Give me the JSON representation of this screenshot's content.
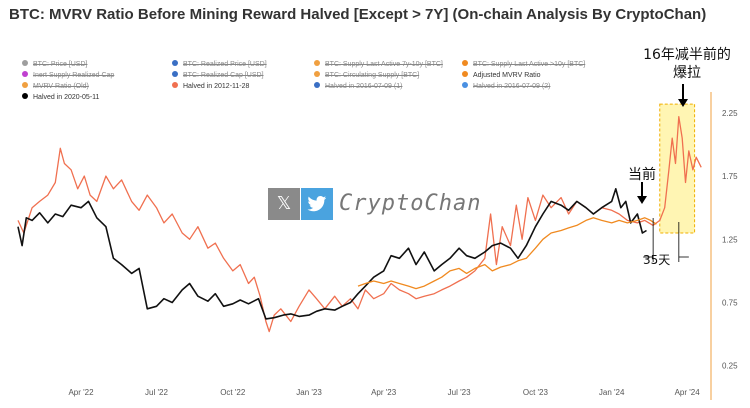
{
  "chart_data": {
    "type": "line",
    "title": "BTC: MVRV Ratio Before Mining Reward Halved [Except > 7Y] (On-chain Analysis By CryptoChan)",
    "xlabel": "",
    "ylabel": "",
    "x_tick_labels": [
      "Apr '22",
      "Jul '22",
      "Oct '22",
      "Jan '23",
      "Apr '23",
      "Jul '23",
      "Oct '23",
      "Jan '24",
      "Apr '24"
    ],
    "x_tick_dates": [
      "2022-04-01",
      "2022-07-01",
      "2022-10-01",
      "2023-01-01",
      "2023-04-01",
      "2023-07-01",
      "2023-10-01",
      "2024-01-01",
      "2024-04-01"
    ],
    "xlim": [
      "2022-01-15",
      "2024-05-01"
    ],
    "y_ticks": [
      0.25,
      0.75,
      1.25,
      1.75,
      2.25
    ],
    "y_tick_labels": [
      "0.25",
      "0.75",
      "1.25",
      "1.75",
      "2.25"
    ],
    "ylim": [
      0.2,
      2.4
    ],
    "y_axis_side": "right",
    "grid": false,
    "legend_position": "top-left",
    "legend": [
      {
        "label": "BTC: Price [USD]",
        "color": "#9e9e9e",
        "hidden": true
      },
      {
        "label": "BTC: Realized Price [USD]",
        "color": "#3a6fc4",
        "hidden": true
      },
      {
        "label": "BTC: Supply Last Active 7y-10y [BTC]",
        "color": "#f0a040",
        "hidden": true
      },
      {
        "label": "BTC: Supply Last Active >10y [BTC]",
        "color": "#f08a20",
        "hidden": true
      },
      {
        "label": "Inert Supply Realized Cap",
        "color": "#c040d0",
        "hidden": true
      },
      {
        "label": "BTC: Realized Cap [USD]",
        "color": "#3a6fc4",
        "hidden": true
      },
      {
        "label": "BTC: Circulating Supply [BTC]",
        "color": "#f0a040",
        "hidden": true
      },
      {
        "label": "Adjusted MVRV Ratio",
        "color": "#f08a20",
        "hidden": false
      },
      {
        "label": "MVRV Ratio (Old)",
        "color": "#f0a040",
        "hidden": true
      },
      {
        "label": "Halved in 2012-11-28",
        "color": "#f07050",
        "hidden": false
      },
      {
        "label": "Halved in 2016-07-09 (1)",
        "color": "#3a6fc4",
        "hidden": true
      },
      {
        "label": "Halved in 2016-07-09 (2)",
        "color": "#4a90e2",
        "hidden": true
      },
      {
        "label": "Halved in 2020-05-11",
        "color": "#000000",
        "hidden": false
      }
    ],
    "series": [
      {
        "name": "Halved in 2012-11-28",
        "color": "#f07050",
        "points": [
          [
            "2022-01-15",
            1.4
          ],
          [
            "2022-01-22",
            1.3
          ],
          [
            "2022-02-01",
            1.5
          ],
          [
            "2022-02-10",
            1.55
          ],
          [
            "2022-02-20",
            1.6
          ],
          [
            "2022-03-01",
            1.7
          ],
          [
            "2022-03-07",
            1.97
          ],
          [
            "2022-03-12",
            1.85
          ],
          [
            "2022-03-20",
            1.8
          ],
          [
            "2022-03-28",
            1.65
          ],
          [
            "2022-04-05",
            1.75
          ],
          [
            "2022-04-12",
            1.6
          ],
          [
            "2022-04-20",
            1.55
          ],
          [
            "2022-05-01",
            1.75
          ],
          [
            "2022-05-10",
            1.65
          ],
          [
            "2022-05-20",
            1.72
          ],
          [
            "2022-06-01",
            1.55
          ],
          [
            "2022-06-10",
            1.48
          ],
          [
            "2022-06-20",
            1.6
          ],
          [
            "2022-07-01",
            1.5
          ],
          [
            "2022-07-10",
            1.38
          ],
          [
            "2022-07-20",
            1.45
          ],
          [
            "2022-08-01",
            1.3
          ],
          [
            "2022-08-10",
            1.25
          ],
          [
            "2022-08-20",
            1.35
          ],
          [
            "2022-09-01",
            1.18
          ],
          [
            "2022-09-10",
            1.22
          ],
          [
            "2022-09-20",
            1.1
          ],
          [
            "2022-10-01",
            1.0
          ],
          [
            "2022-10-10",
            1.05
          ],
          [
            "2022-10-20",
            0.9
          ],
          [
            "2022-10-27",
            0.95
          ],
          [
            "2022-11-03",
            0.8
          ],
          [
            "2022-11-10",
            0.6
          ],
          [
            "2022-11-14",
            0.52
          ],
          [
            "2022-11-20",
            0.65
          ],
          [
            "2022-11-28",
            0.7
          ],
          [
            "2022-12-10",
            0.6
          ],
          [
            "2022-12-20",
            0.72
          ],
          [
            "2023-01-01",
            0.85
          ],
          [
            "2023-01-10",
            0.78
          ],
          [
            "2023-01-20",
            0.7
          ],
          [
            "2023-02-01",
            0.8
          ],
          [
            "2023-02-10",
            0.72
          ],
          [
            "2023-02-20",
            0.78
          ],
          [
            "2023-03-01",
            0.7
          ],
          [
            "2023-03-10",
            0.85
          ],
          [
            "2023-03-20",
            0.78
          ],
          [
            "2023-04-01",
            0.82
          ],
          [
            "2023-04-10",
            0.9
          ],
          [
            "2023-04-20",
            0.85
          ],
          [
            "2023-05-01",
            0.82
          ],
          [
            "2023-05-10",
            0.78
          ],
          [
            "2023-05-20",
            0.8
          ],
          [
            "2023-06-01",
            0.82
          ],
          [
            "2023-06-10",
            0.85
          ],
          [
            "2023-06-20",
            0.88
          ],
          [
            "2023-07-01",
            0.92
          ],
          [
            "2023-07-10",
            0.95
          ],
          [
            "2023-07-20",
            1.0
          ],
          [
            "2023-08-01",
            1.1
          ],
          [
            "2023-08-08",
            1.45
          ],
          [
            "2023-08-15",
            1.05
          ],
          [
            "2023-08-22",
            1.35
          ],
          [
            "2023-09-01",
            1.2
          ],
          [
            "2023-09-08",
            1.52
          ],
          [
            "2023-09-15",
            1.25
          ],
          [
            "2023-09-22",
            1.58
          ],
          [
            "2023-10-01",
            1.4
          ],
          [
            "2023-10-10",
            1.6
          ],
          [
            "2023-10-20",
            1.5
          ],
          [
            "2023-11-01",
            1.58
          ],
          [
            "2023-11-10",
            1.45
          ],
          [
            "2023-11-20",
            1.55
          ],
          [
            "2023-12-01",
            1.5
          ],
          [
            "2023-12-10",
            1.45
          ],
          [
            "2023-12-20",
            1.5
          ],
          [
            "2024-01-01",
            1.48
          ],
          [
            "2024-01-10",
            1.45
          ],
          [
            "2024-01-20",
            1.4
          ],
          [
            "2024-02-01",
            1.38
          ],
          [
            "2024-02-10",
            1.4
          ],
          [
            "2024-02-20",
            1.36
          ],
          [
            "2024-02-28",
            1.4
          ],
          [
            "2024-03-05",
            1.5
          ],
          [
            "2024-03-10",
            1.8
          ],
          [
            "2024-03-14",
            2.05
          ],
          [
            "2024-03-18",
            1.85
          ],
          [
            "2024-03-22",
            2.22
          ],
          [
            "2024-03-26",
            2.05
          ],
          [
            "2024-03-30",
            1.7
          ],
          [
            "2024-04-03",
            1.95
          ],
          [
            "2024-04-08",
            1.8
          ],
          [
            "2024-04-12",
            1.9
          ],
          [
            "2024-04-18",
            1.82
          ]
        ]
      },
      {
        "name": "Halved in 2020-05-11",
        "color": "#111111",
        "points": [
          [
            "2022-01-15",
            1.35
          ],
          [
            "2022-01-20",
            1.2
          ],
          [
            "2022-01-25",
            1.42
          ],
          [
            "2022-02-01",
            1.4
          ],
          [
            "2022-02-10",
            1.46
          ],
          [
            "2022-02-20",
            1.38
          ],
          [
            "2022-03-01",
            1.45
          ],
          [
            "2022-03-10",
            1.43
          ],
          [
            "2022-03-20",
            1.52
          ],
          [
            "2022-04-01",
            1.5
          ],
          [
            "2022-04-10",
            1.55
          ],
          [
            "2022-04-20",
            1.42
          ],
          [
            "2022-05-01",
            1.35
          ],
          [
            "2022-05-10",
            1.1
          ],
          [
            "2022-05-20",
            1.05
          ],
          [
            "2022-06-01",
            0.98
          ],
          [
            "2022-06-10",
            1.02
          ],
          [
            "2022-06-20",
            0.7
          ],
          [
            "2022-07-01",
            0.72
          ],
          [
            "2022-07-10",
            0.78
          ],
          [
            "2022-07-20",
            0.75
          ],
          [
            "2022-08-01",
            0.85
          ],
          [
            "2022-08-10",
            0.9
          ],
          [
            "2022-08-20",
            0.8
          ],
          [
            "2022-09-01",
            0.76
          ],
          [
            "2022-09-10",
            0.82
          ],
          [
            "2022-09-20",
            0.72
          ],
          [
            "2022-10-01",
            0.74
          ],
          [
            "2022-10-10",
            0.77
          ],
          [
            "2022-10-20",
            0.74
          ],
          [
            "2022-11-01",
            0.78
          ],
          [
            "2022-11-10",
            0.62
          ],
          [
            "2022-11-20",
            0.63
          ],
          [
            "2022-12-01",
            0.65
          ],
          [
            "2022-12-10",
            0.66
          ],
          [
            "2022-12-20",
            0.64
          ],
          [
            "2023-01-01",
            0.65
          ],
          [
            "2023-01-10",
            0.68
          ],
          [
            "2023-01-20",
            0.7
          ],
          [
            "2023-02-01",
            0.69
          ],
          [
            "2023-02-10",
            0.72
          ],
          [
            "2023-02-20",
            0.75
          ],
          [
            "2023-03-01",
            0.82
          ],
          [
            "2023-03-10",
            0.88
          ],
          [
            "2023-03-20",
            0.95
          ],
          [
            "2023-04-01",
            1.0
          ],
          [
            "2023-04-10",
            1.12
          ],
          [
            "2023-04-20",
            1.1
          ],
          [
            "2023-05-01",
            1.18
          ],
          [
            "2023-05-10",
            1.05
          ],
          [
            "2023-05-20",
            1.15
          ],
          [
            "2023-06-01",
            1.0
          ],
          [
            "2023-06-10",
            1.05
          ],
          [
            "2023-06-20",
            1.1
          ],
          [
            "2023-07-01",
            1.18
          ],
          [
            "2023-07-10",
            1.12
          ],
          [
            "2023-07-20",
            1.1
          ],
          [
            "2023-08-01",
            1.15
          ],
          [
            "2023-08-10",
            1.2
          ],
          [
            "2023-08-20",
            1.22
          ],
          [
            "2023-09-01",
            1.18
          ],
          [
            "2023-09-10",
            1.1
          ],
          [
            "2023-09-20",
            1.2
          ],
          [
            "2023-10-01",
            1.35
          ],
          [
            "2023-10-10",
            1.45
          ],
          [
            "2023-10-20",
            1.55
          ],
          [
            "2023-11-01",
            1.52
          ],
          [
            "2023-11-10",
            1.48
          ],
          [
            "2023-11-20",
            1.55
          ],
          [
            "2023-12-01",
            1.5
          ],
          [
            "2023-12-10",
            1.45
          ],
          [
            "2023-12-20",
            1.5
          ],
          [
            "2024-01-01",
            1.55
          ],
          [
            "2024-01-06",
            1.65
          ],
          [
            "2024-01-12",
            1.5
          ],
          [
            "2024-01-18",
            1.55
          ],
          [
            "2024-01-24",
            1.38
          ],
          [
            "2024-02-01",
            1.45
          ],
          [
            "2024-02-07",
            1.3
          ],
          [
            "2024-02-12",
            1.32
          ]
        ]
      },
      {
        "name": "Adjusted MVRV Ratio",
        "color": "#f08a20",
        "points": [
          [
            "2023-03-01",
            0.88
          ],
          [
            "2023-03-10",
            0.9
          ],
          [
            "2023-03-20",
            0.92
          ],
          [
            "2023-04-01",
            0.9
          ],
          [
            "2023-04-10",
            0.92
          ],
          [
            "2023-04-20",
            0.9
          ],
          [
            "2023-05-01",
            0.88
          ],
          [
            "2023-05-10",
            0.86
          ],
          [
            "2023-05-20",
            0.88
          ],
          [
            "2023-06-01",
            0.92
          ],
          [
            "2023-06-10",
            0.95
          ],
          [
            "2023-06-20",
            1.0
          ],
          [
            "2023-07-01",
            1.02
          ],
          [
            "2023-07-10",
            0.98
          ],
          [
            "2023-07-20",
            1.02
          ],
          [
            "2023-08-01",
            1.05
          ],
          [
            "2023-08-10",
            1.0
          ],
          [
            "2023-08-20",
            1.03
          ],
          [
            "2023-09-01",
            1.05
          ],
          [
            "2023-09-10",
            1.08
          ],
          [
            "2023-09-20",
            1.1
          ],
          [
            "2023-10-01",
            1.18
          ],
          [
            "2023-10-10",
            1.25
          ],
          [
            "2023-10-20",
            1.3
          ],
          [
            "2023-11-01",
            1.32
          ],
          [
            "2023-11-10",
            1.34
          ],
          [
            "2023-11-20",
            1.36
          ],
          [
            "2023-12-01",
            1.4
          ],
          [
            "2023-12-10",
            1.42
          ],
          [
            "2023-12-20",
            1.4
          ],
          [
            "2024-01-01",
            1.38
          ],
          [
            "2024-01-10",
            1.4
          ],
          [
            "2024-01-20",
            1.38
          ],
          [
            "2024-02-01",
            1.4
          ],
          [
            "2024-02-10",
            1.42
          ],
          [
            "2024-02-17",
            1.4
          ],
          [
            "2024-02-24",
            1.37
          ]
        ]
      }
    ],
    "highlight_region": {
      "start": "2024-02-28",
      "end": "2024-04-10",
      "ymin": 1.3,
      "ymax": 2.32,
      "color": "#fff3a0"
    }
  },
  "annotations": {
    "halving_label": "16年减半前的爆拉",
    "current_label": "当前",
    "days_label": "35天"
  },
  "watermark": {
    "x_icon": "𝕏",
    "bird_icon": "twitter-bird-icon",
    "text": "CryptoChan"
  },
  "colors": {
    "axis_line": "#f0a040",
    "tick_text": "#555555",
    "watermark_gray": "#8a8a8a",
    "watermark_blue": "#4aa3df"
  }
}
